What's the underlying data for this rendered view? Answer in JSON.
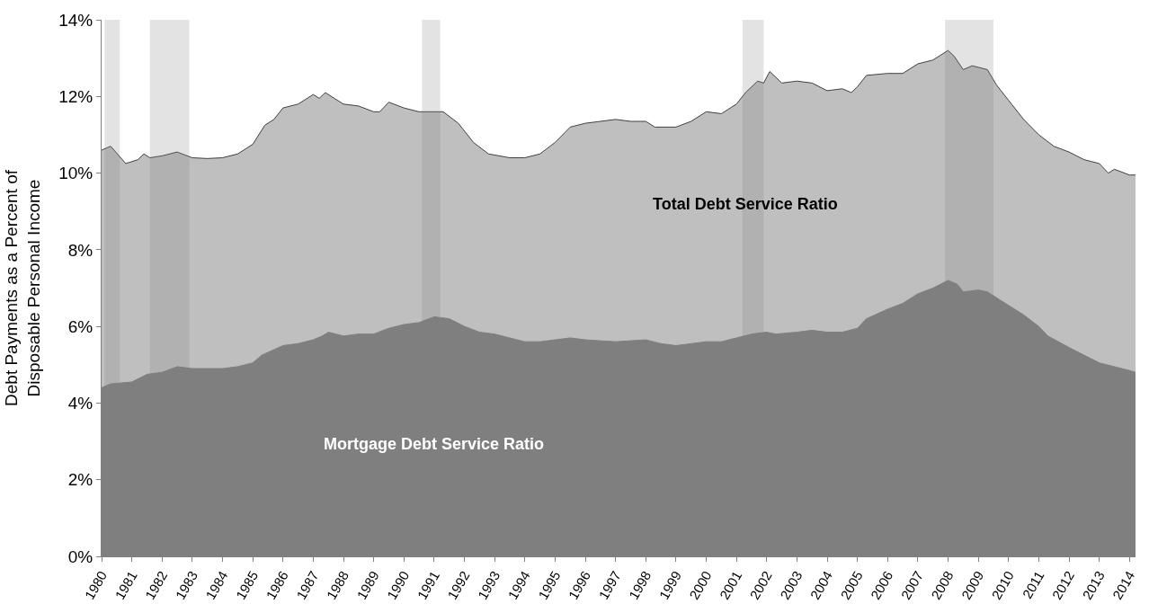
{
  "chart_data": {
    "type": "area",
    "ylabel": "Debt Payments as a Percent of\nDisposable Personal Income",
    "xlim": [
      1980,
      2014.2
    ],
    "xticks": [
      1980,
      1981,
      1982,
      1983,
      1984,
      1985,
      1986,
      1987,
      1988,
      1989,
      1990,
      1991,
      1992,
      1993,
      1994,
      1995,
      1996,
      1997,
      1998,
      1999,
      2000,
      2001,
      2002,
      2003,
      2004,
      2005,
      2006,
      2007,
      2008,
      2009,
      2010,
      2011,
      2012,
      2013,
      2014
    ],
    "ylim": [
      0,
      14
    ],
    "yticks": [
      {
        "value": 0,
        "label": "0%"
      },
      {
        "value": 2,
        "label": "2%"
      },
      {
        "value": 4,
        "label": "4%"
      },
      {
        "value": 6,
        "label": "6%"
      },
      {
        "value": 8,
        "label": "8%"
      },
      {
        "value": 10,
        "label": "10%"
      },
      {
        "value": 12,
        "label": "12%"
      },
      {
        "value": 14,
        "label": "14%"
      }
    ],
    "legend": false,
    "series": [
      {
        "name": "Total Debt Service Ratio",
        "color": "#bfbfbf",
        "x": [
          1980.0,
          1980.3,
          1980.8,
          1981.2,
          1981.4,
          1981.6,
          1982.0,
          1982.5,
          1983.0,
          1983.5,
          1984.0,
          1984.5,
          1985.0,
          1985.4,
          1985.7,
          1986.0,
          1986.5,
          1987.0,
          1987.2,
          1987.4,
          1988.0,
          1988.5,
          1989.0,
          1989.2,
          1989.5,
          1990.0,
          1990.5,
          1991.0,
          1991.3,
          1991.8,
          1992.3,
          1992.8,
          1993.5,
          1994.0,
          1994.5,
          1995.0,
          1995.5,
          1996.0,
          1996.5,
          1997.0,
          1997.5,
          1998.0,
          1998.3,
          1999.0,
          1999.5,
          2000.0,
          2000.5,
          2001.0,
          2001.3,
          2001.7,
          2001.9,
          2002.1,
          2002.5,
          2003.0,
          2003.5,
          2004.0,
          2004.5,
          2004.8,
          2005.0,
          2005.3,
          2006.0,
          2006.5,
          2007.0,
          2007.5,
          2008.0,
          2008.2,
          2008.5,
          2008.8,
          2009.3,
          2009.6,
          2010.0,
          2010.5,
          2011.0,
          2011.5,
          2012.0,
          2012.5,
          2013.0,
          2013.3,
          2013.5,
          2014.0,
          2014.2
        ],
        "values": [
          10.6,
          10.7,
          10.25,
          10.35,
          10.5,
          10.4,
          10.45,
          10.55,
          10.4,
          10.38,
          10.4,
          10.5,
          10.75,
          11.25,
          11.4,
          11.7,
          11.8,
          12.05,
          11.95,
          12.1,
          11.8,
          11.75,
          11.6,
          11.6,
          11.85,
          11.7,
          11.6,
          11.6,
          11.6,
          11.3,
          10.8,
          10.5,
          10.4,
          10.4,
          10.5,
          10.8,
          11.2,
          11.3,
          11.35,
          11.4,
          11.35,
          11.35,
          11.2,
          11.2,
          11.35,
          11.6,
          11.55,
          11.8,
          12.1,
          12.4,
          12.35,
          12.65,
          12.35,
          12.4,
          12.35,
          12.15,
          12.2,
          12.1,
          12.25,
          12.55,
          12.6,
          12.6,
          12.85,
          12.95,
          13.2,
          13.05,
          12.7,
          12.8,
          12.7,
          12.3,
          11.9,
          11.4,
          11.0,
          10.7,
          10.55,
          10.35,
          10.25,
          10.0,
          10.1,
          9.95,
          9.95
        ]
      },
      {
        "name": "Mortgage Debt Service Ratio",
        "color": "#7f7f7f",
        "x": [
          1980.0,
          1980.3,
          1981.0,
          1981.5,
          1982.0,
          1982.5,
          1983.0,
          1984.0,
          1984.5,
          1985.0,
          1985.3,
          1986.0,
          1986.5,
          1987.0,
          1987.3,
          1987.5,
          1988.0,
          1988.5,
          1989.0,
          1989.5,
          1990.0,
          1990.5,
          1991.0,
          1991.5,
          1992.0,
          1992.5,
          1993.0,
          1993.5,
          1994.0,
          1994.5,
          1995.0,
          1995.5,
          1996.0,
          1997.0,
          1998.0,
          1998.5,
          1999.0,
          1999.5,
          2000.0,
          2000.5,
          2001.0,
          2001.5,
          2002.0,
          2002.3,
          2003.0,
          2003.5,
          2004.0,
          2004.5,
          2005.0,
          2005.3,
          2006.0,
          2006.5,
          2007.0,
          2007.5,
          2008.0,
          2008.3,
          2008.5,
          2009.0,
          2009.3,
          2009.7,
          2010.0,
          2010.5,
          2011.0,
          2011.3,
          2012.0,
          2012.5,
          2013.0,
          2013.5,
          2014.0,
          2014.2
        ],
        "values": [
          4.4,
          4.5,
          4.55,
          4.75,
          4.8,
          4.95,
          4.9,
          4.9,
          4.95,
          5.05,
          5.25,
          5.5,
          5.55,
          5.65,
          5.75,
          5.85,
          5.75,
          5.8,
          5.8,
          5.95,
          6.05,
          6.1,
          6.25,
          6.2,
          6.0,
          5.85,
          5.8,
          5.7,
          5.6,
          5.6,
          5.65,
          5.7,
          5.65,
          5.6,
          5.65,
          5.55,
          5.5,
          5.55,
          5.6,
          5.6,
          5.7,
          5.8,
          5.85,
          5.8,
          5.85,
          5.9,
          5.85,
          5.85,
          5.95,
          6.2,
          6.45,
          6.6,
          6.85,
          7.0,
          7.2,
          7.1,
          6.9,
          6.95,
          6.9,
          6.7,
          6.55,
          6.3,
          6.0,
          5.75,
          5.45,
          5.25,
          5.05,
          4.95,
          4.85,
          4.8
        ]
      }
    ],
    "bands": [
      {
        "axis": "x",
        "from": 1980.1,
        "to": 1980.6,
        "color": "#808080"
      },
      {
        "axis": "x",
        "from": 1981.6,
        "to": 1982.9,
        "color": "#808080"
      },
      {
        "axis": "x",
        "from": 1990.6,
        "to": 1991.2,
        "color": "#808080"
      },
      {
        "axis": "x",
        "from": 2001.2,
        "to": 2001.9,
        "color": "#808080"
      },
      {
        "axis": "x",
        "from": 2007.9,
        "to": 2009.5,
        "color": "#808080"
      }
    ]
  }
}
